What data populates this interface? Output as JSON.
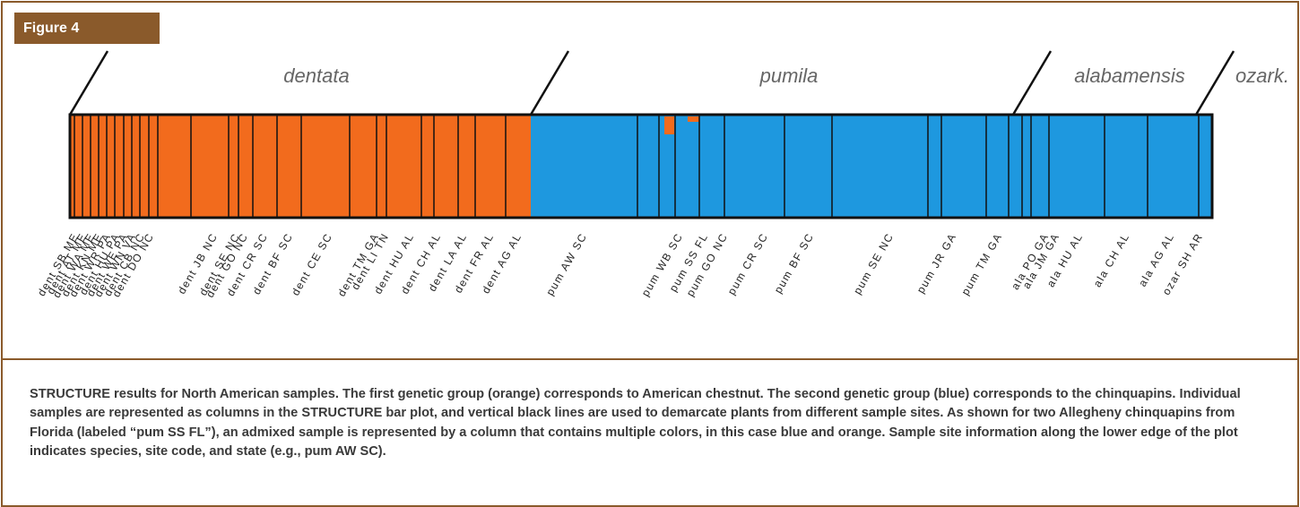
{
  "figure": {
    "tab": "Figure 4",
    "groups": [
      "dentata",
      "pumila",
      "alabamensis",
      "ozark."
    ],
    "sites": [
      "dent SB ME",
      "dent AT ME",
      "dent WA ME",
      "dent KN ME",
      "dent WR PA",
      "dent HU PA",
      "dent WE PA",
      "dent WN VA",
      "dent CB NC",
      "dent DO NC",
      "dent JB NC",
      "dent SE NC",
      "dent GO NC",
      "dent CR SC",
      "dent BF SC",
      "dent CE SC",
      "dent TM GA",
      "dent LI TN",
      "dent HU AL",
      "dent CH AL",
      "dent LA AL",
      "dent FR AL",
      "dent AG AL",
      "pum AW SC",
      "pum WB SC",
      "pum SS FL",
      "pum GO NC",
      "pum CR SC",
      "pum BF SC",
      "pum SE NC",
      "pum JR GA",
      "pum TM GA",
      "ala PO GA",
      "ala JM GA",
      "ala HU AL",
      "ala CH AL",
      "ala AG AL",
      "ozar SH AR"
    ]
  },
  "caption": "STRUCTURE results for North American samples. The first genetic group (orange) corresponds to American chestnut. The second genetic group (blue) corresponds to the chinquapins. Individual samples are represented as columns in the STRUCTURE bar plot, and vertical black lines are used to demarcate plants from different sample sites. As shown for two Allegheny chinquapins from Florida (labeled “pum SS FL”), an admixed sample is represented by a column that contains multiple colors, in this case blue and orange. Sample site information along the lower edge of the plot indicates species, site code, and state (e.g., pum AW SC)."
}
